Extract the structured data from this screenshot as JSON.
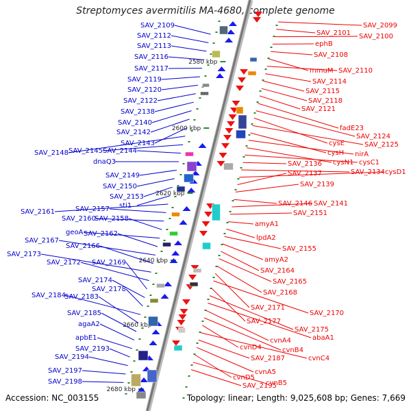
{
  "title": "Streptomyces avermitilis MA-4680, complete genome",
  "footer": {
    "accession": "Accession: NC_003155",
    "summary": "Topology: linear; Length: 9,025,608 bp; Genes: 7,669"
  },
  "colors": {
    "left_label": "#0000cc",
    "right_label": "#ee0000",
    "forward_gene": "#1a1aee",
    "reverse_gene": "#ee1111",
    "backbone": "#999999",
    "tick": "#2a8a2a"
  },
  "ticks": [
    "2580 kbp",
    "2600 kbp",
    "2620 kbp",
    "2640 kbp",
    "2660 kbp",
    "2680 kbp"
  ],
  "left_genes": [
    "SAV_2109",
    "SAV_2112",
    "SAV_2113",
    "SAV_2116",
    "SAV_2117",
    "SAV_2119",
    "SAV_2120",
    "SAV_2122",
    "SAV_2138",
    "SAV_2140",
    "SAV_2142",
    "SAV_2143",
    "SAV_2148",
    "SAV_2145",
    "SAV_2144",
    "dnaQ3",
    "SAV_2149",
    "SAV_2150",
    "SAV_2153",
    "sti1",
    "SAV_2161",
    "SAV_2157",
    "SAV_2160",
    "SAV_2158",
    "geoA",
    "SAV_2162",
    "SAV_2167",
    "SAV_2166",
    "SAV_2173",
    "SAV_2172",
    "SAV_2169",
    "SAV_2174",
    "SAV_2178",
    "SAV_2184",
    "SAV_2183",
    "SAV_2185",
    "agaA2",
    "apbE1",
    "SAV_2193",
    "SAV_2194",
    "SAV_2197",
    "SAV_2198"
  ],
  "right_genes": [
    "SAV_2099",
    "SAV_2101",
    "SAV_2100",
    "ephB",
    "SAV_2108",
    "mmuM",
    "SAV_2110",
    "SAV_2114",
    "SAV_2115",
    "SAV_2118",
    "SAV_2121",
    "fadE23",
    "SAV_2124",
    "cysE",
    "SAV_2125",
    "cysH",
    "nirA",
    "cysN1",
    "cysC1",
    "SAV_2136",
    "SAV_2134",
    "cysD1",
    "SAV_2137",
    "SAV_2139",
    "SAV_2146",
    "SAV_2141",
    "SAV_2151",
    "amyA1",
    "lpdA2",
    "SAV_2155",
    "amyA2",
    "SAV_2164",
    "SAV_2165",
    "SAV_2168",
    "SAV_2171",
    "SAV_2170",
    "SAV_2177",
    "SAV_2175",
    "abaA1",
    "cvnA4",
    "cvnB4",
    "cvnD4",
    "cvnC4",
    "SAV_2187",
    "cvnA5",
    "cvnD5",
    "cvnB5",
    "SAV_2195"
  ]
}
